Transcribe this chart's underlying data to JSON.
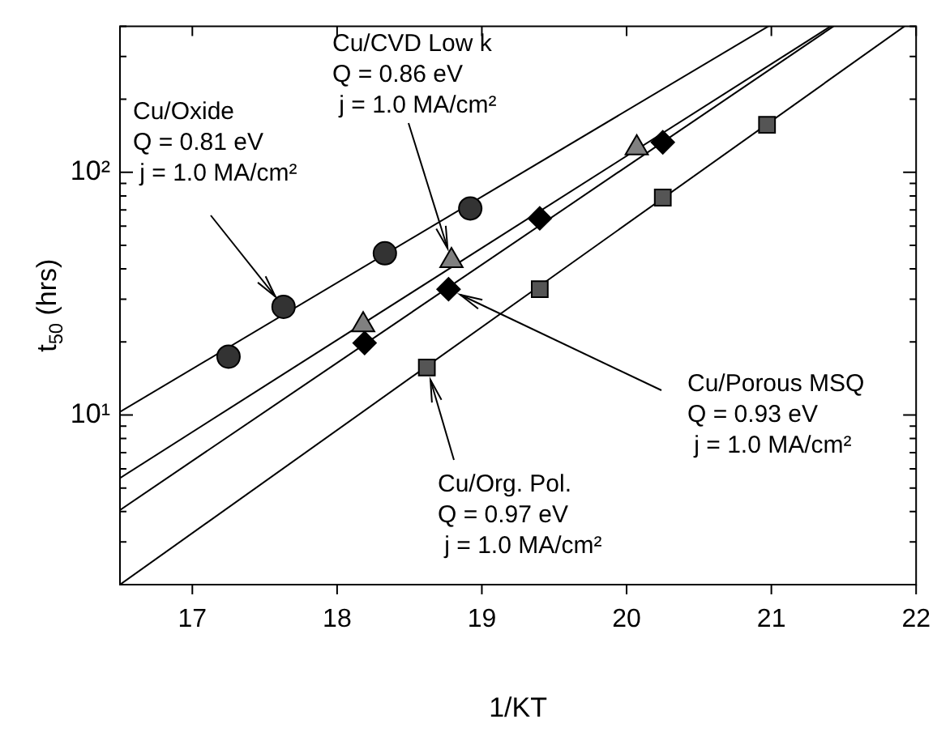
{
  "chart_data": {
    "type": "scatter",
    "xlabel": "1/KT",
    "ylabel": "t$_{50}$ (hrs)",
    "log": "y",
    "grid": false,
    "legend": false,
    "xlim": [
      16.5,
      22
    ],
    "xticks": [
      17,
      18,
      19,
      20,
      21,
      22
    ],
    "ylim": [
      2,
      400
    ],
    "yticks": [
      {
        "value": 2,
        "label": null
      },
      {
        "value": 3,
        "label": null
      },
      {
        "value": 4,
        "label": null
      },
      {
        "value": 5,
        "label": null
      },
      {
        "value": 6,
        "label": null
      },
      {
        "value": 7,
        "label": null
      },
      {
        "value": 8,
        "label": null
      },
      {
        "value": 9,
        "label": null
      },
      {
        "value": 10,
        "label": "10¹"
      },
      {
        "value": 20,
        "label": null
      },
      {
        "value": 30,
        "label": null
      },
      {
        "value": 40,
        "label": null
      },
      {
        "value": 50,
        "label": null
      },
      {
        "value": 60,
        "label": null
      },
      {
        "value": 70,
        "label": null
      },
      {
        "value": 80,
        "label": null
      },
      {
        "value": 90,
        "label": null
      },
      {
        "value": 100,
        "label": "10²"
      },
      {
        "value": 200,
        "label": null
      },
      {
        "value": 300,
        "label": null
      },
      {
        "value": 400,
        "label": null
      }
    ],
    "series": [
      {
        "marker": "circle",
        "color": "#333333",
        "x": [
          17.25,
          17.63,
          18.33,
          18.92
        ],
        "values": [
          17.4,
          27.9,
          46.4,
          71
        ]
      },
      {
        "marker": "triangle",
        "color": "#808080",
        "x": [
          18.18,
          18.79,
          20.07
        ],
        "values": [
          23.5,
          43.2,
          126
        ]
      },
      {
        "marker": "diamond",
        "color": "#000000",
        "x": [
          18.19,
          18.77,
          19.4,
          20.25
        ],
        "values": [
          19.8,
          33,
          64.6,
          133
        ]
      },
      {
        "marker": "square",
        "color": "#555555",
        "x": [
          18.62,
          19.4,
          20.25,
          20.97
        ],
        "values": [
          15.7,
          33,
          78.7,
          157
        ]
      },
      {
        "type": "line",
        "marker": "none",
        "color": "#000000",
        "x": [
          16.5,
          20.98
        ],
        "values": [
          10.3,
          400
        ]
      },
      {
        "type": "line",
        "marker": "none",
        "color": "#000000",
        "x": [
          16.5,
          21.41
        ],
        "values": [
          5.5,
          400
        ]
      },
      {
        "type": "line",
        "marker": "none",
        "color": "#000000",
        "x": [
          16.5,
          21.43
        ],
        "values": [
          4.06,
          400
        ]
      },
      {
        "type": "line",
        "marker": "none",
        "color": "#000000",
        "x": [
          16.5,
          21.92
        ],
        "values": [
          2,
          400
        ]
      }
    ],
    "annotations": [
      {
        "text": "Cu/Oxide\nQ = 0.81 eV\n j = 1.0 MA/cm²",
        "x": 17.63,
        "y": 27.9
      },
      {
        "text": "Cu/CVD Low k\nQ = 0.86 eV\n j = 1.0 MA/cm²",
        "x": 18.79,
        "y": 43.2
      },
      {
        "text": "Cu/Porous MSQ\nQ = 0.93 eV\n j = 1.0 MA/cm²",
        "x": 18.77,
        "y": 33
      },
      {
        "text": "Cu/Org. Pol.\nQ = 0.97 eV\n j = 1.0 MA/cm²",
        "x": 18.62,
        "y": 15.7
      }
    ]
  }
}
